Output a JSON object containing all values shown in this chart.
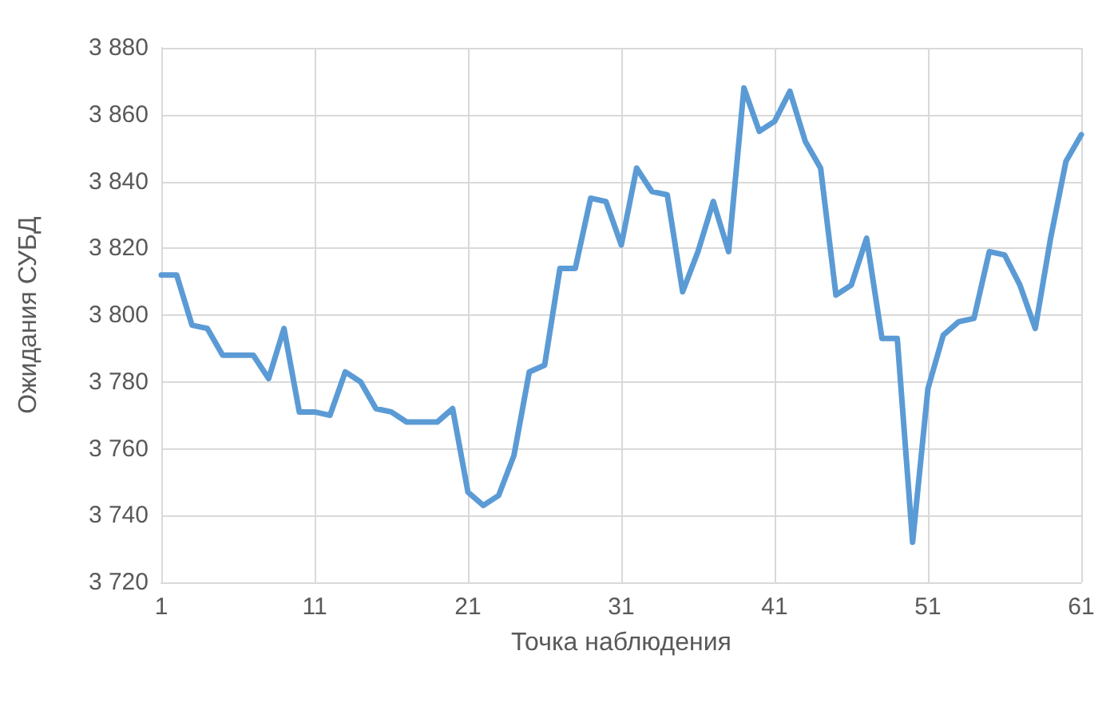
{
  "chart_data": {
    "type": "line",
    "xlabel": "Точка наблюдения",
    "ylabel": "Ожидания СУБД",
    "x": [
      1,
      2,
      3,
      4,
      5,
      6,
      7,
      8,
      9,
      10,
      11,
      12,
      13,
      14,
      15,
      16,
      17,
      18,
      19,
      20,
      21,
      22,
      23,
      24,
      25,
      26,
      27,
      28,
      29,
      30,
      31,
      32,
      33,
      34,
      35,
      36,
      37,
      38,
      39,
      40,
      41,
      42,
      43,
      44,
      45,
      46,
      47,
      48,
      49,
      50,
      51,
      52,
      53,
      54,
      55,
      56,
      57,
      58,
      59,
      60,
      61
    ],
    "series": [
      {
        "color": "#5b9bd5",
        "values": [
          3812,
          3812,
          3797,
          3796,
          3788,
          3788,
          3788,
          3781,
          3796,
          3771,
          3771,
          3770,
          3783,
          3780,
          3772,
          3771,
          3768,
          3768,
          3768,
          3772,
          3747,
          3743,
          3746,
          3758,
          3783,
          3785,
          3814,
          3814,
          3835,
          3834,
          3821,
          3844,
          3837,
          3836,
          3807,
          3819,
          3834,
          3819,
          3868,
          3855,
          3858,
          3867,
          3852,
          3844,
          3806,
          3809,
          3823,
          3793,
          3793,
          3732,
          3778,
          3794,
          3798,
          3799,
          3819,
          3818,
          3809,
          3796,
          3823,
          3846,
          3854
        ]
      }
    ],
    "xlim": [
      1,
      61
    ],
    "xticks": [
      1,
      11,
      21,
      31,
      41,
      51,
      61
    ],
    "ylim": [
      3720,
      3880
    ],
    "yticks": [
      {
        "value": 3720,
        "label": "3 720"
      },
      {
        "value": 3740,
        "label": "3 740"
      },
      {
        "value": 3760,
        "label": "3 760"
      },
      {
        "value": 3780,
        "label": "3 780"
      },
      {
        "value": 3800,
        "label": "3 800"
      },
      {
        "value": 3820,
        "label": "3 820"
      },
      {
        "value": 3840,
        "label": "3 840"
      },
      {
        "value": 3860,
        "label": "3 860"
      },
      {
        "value": 3880,
        "label": "3 880"
      }
    ],
    "grid": true,
    "marker": "none",
    "line_style": "solid"
  }
}
